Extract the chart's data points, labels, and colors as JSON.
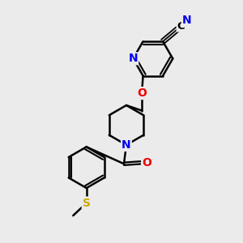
{
  "background_color": "#ebebeb",
  "bond_color": "#000000",
  "bond_width": 1.8,
  "atom_colors": {
    "N": "#0000ee",
    "O": "#ee0000",
    "S": "#ccaa00",
    "C": "#000000"
  },
  "figsize": [
    3.0,
    3.0
  ],
  "dpi": 100
}
